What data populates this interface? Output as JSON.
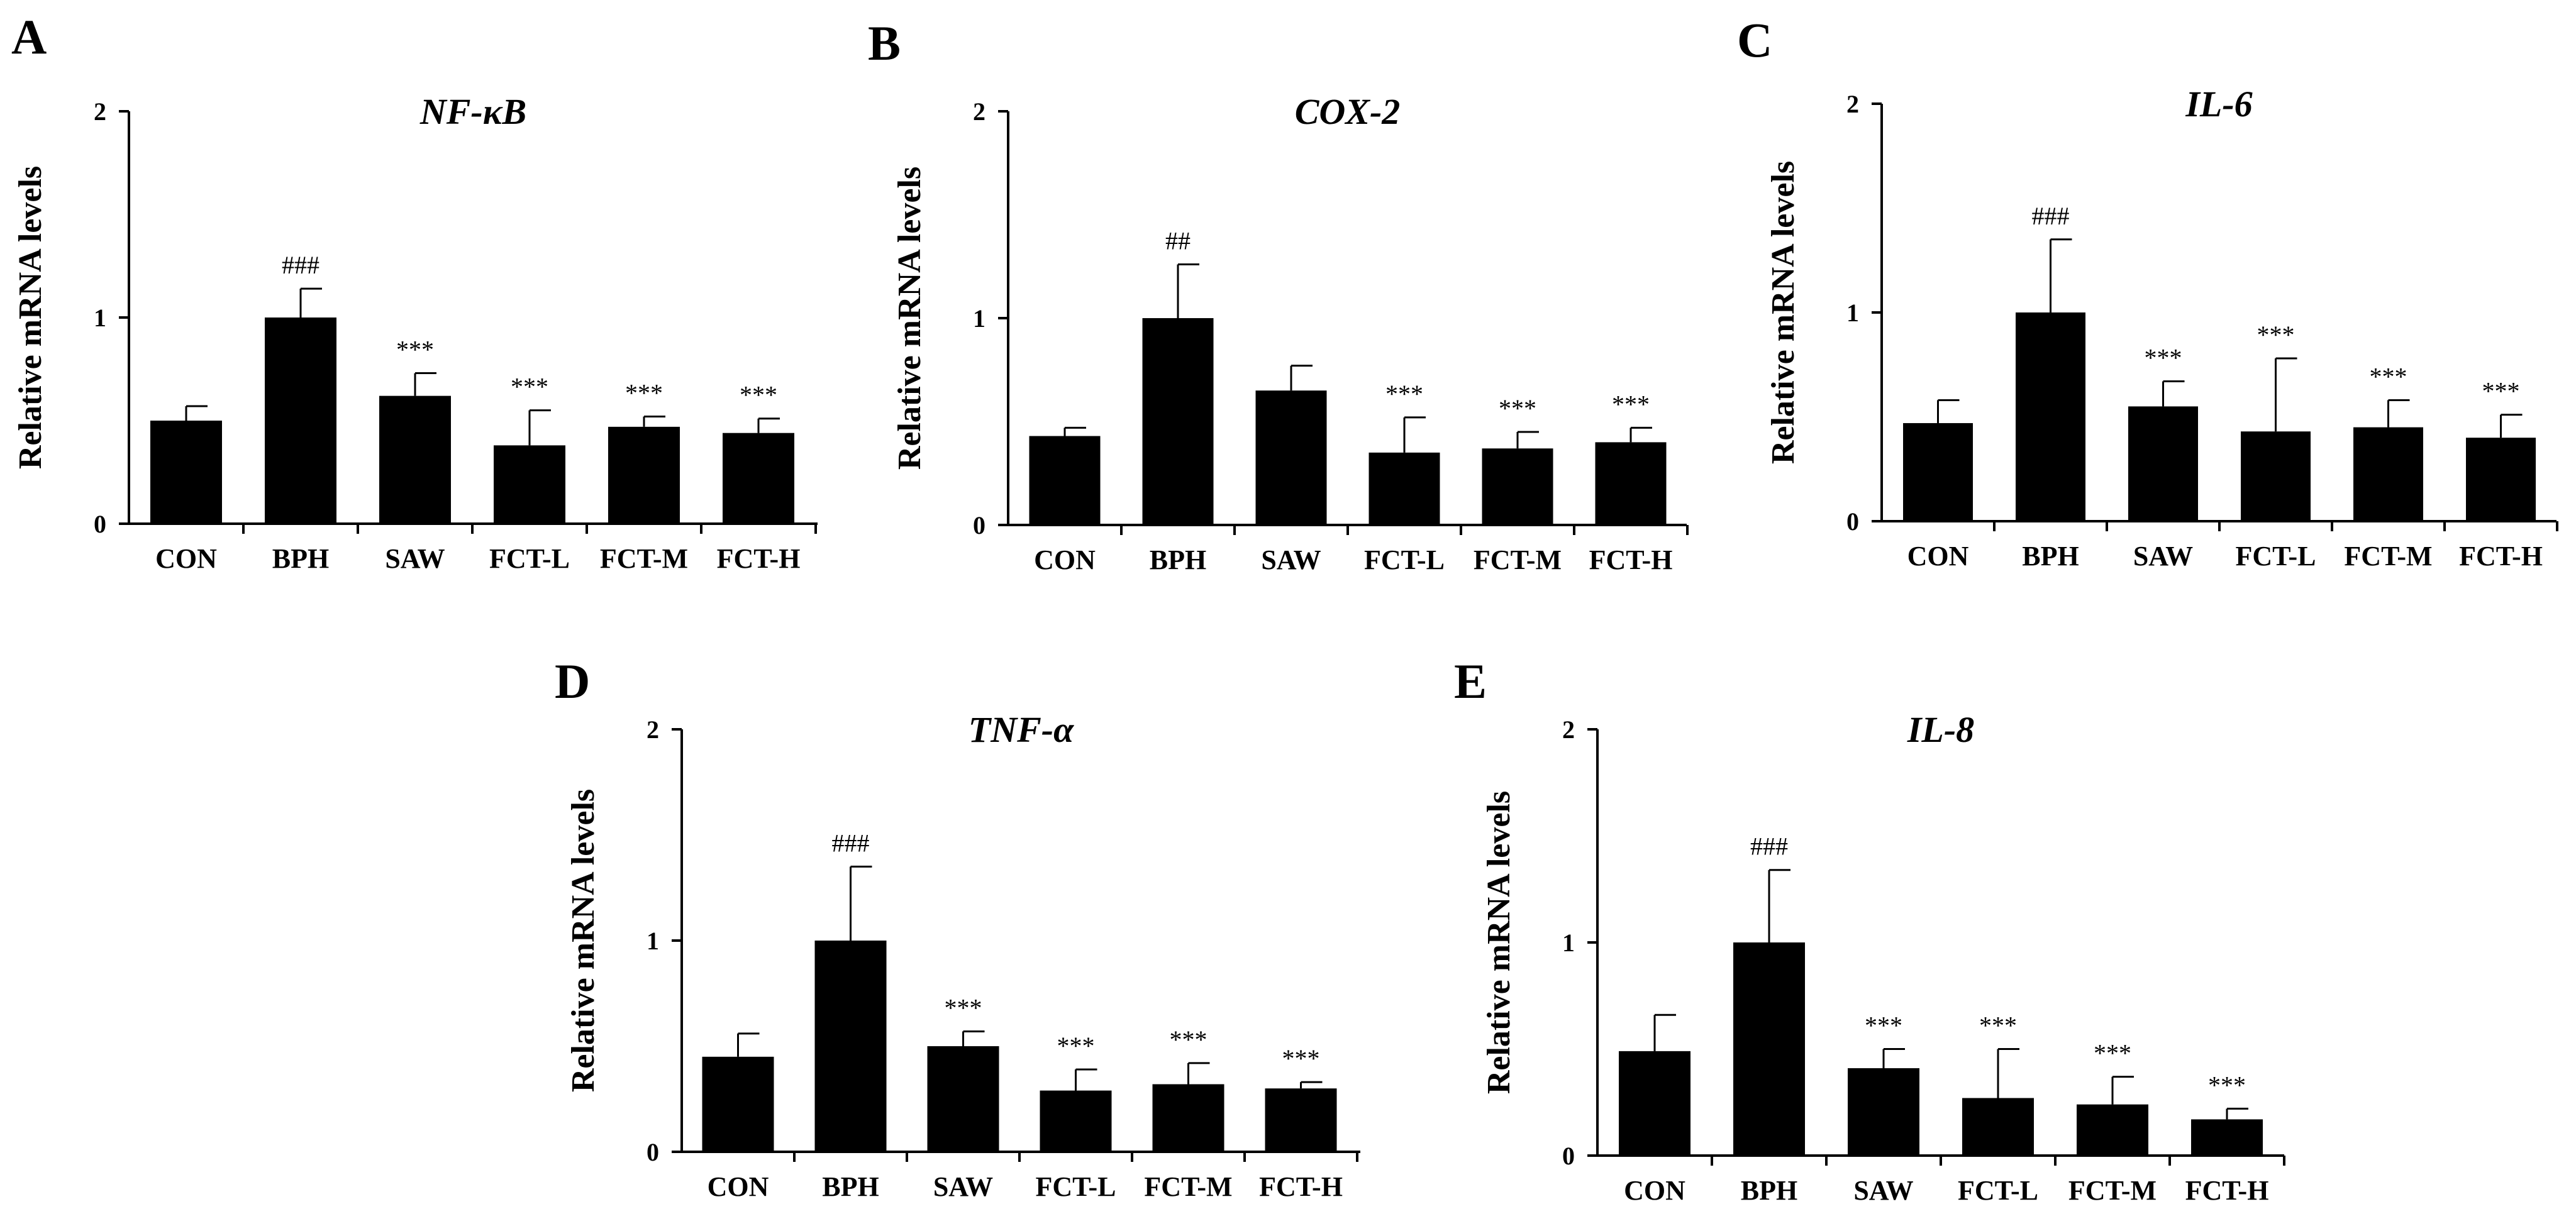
{
  "figure": {
    "charts": [
      {
        "letter": "A"
      },
      {
        "letter": "B"
      },
      {
        "letter": "C"
      },
      {
        "letter": "D"
      },
      {
        "letter": "E"
      }
    ]
  },
  "chart_data": [
    {
      "type": "bar",
      "panel": "A",
      "title": "NF-κB",
      "ylabel": "Relative mRNA levels",
      "xlabel": "",
      "ylim": [
        0,
        2
      ],
      "yticks": [
        0,
        1,
        2
      ],
      "categories": [
        "CON",
        "BPH",
        "SAW",
        "FCT-L",
        "FCT-M",
        "FCT-H"
      ],
      "values": [
        0.5,
        1.0,
        0.62,
        0.38,
        0.47,
        0.44
      ],
      "errors": [
        0.07,
        0.14,
        0.11,
        0.17,
        0.05,
        0.07
      ],
      "annotations": [
        "",
        "###",
        "***",
        "***",
        "***",
        "***"
      ]
    },
    {
      "type": "bar",
      "panel": "B",
      "title": "COX-2",
      "ylabel": "Relative mRNA levels",
      "xlabel": "",
      "ylim": [
        0,
        2
      ],
      "yticks": [
        0,
        1,
        2
      ],
      "categories": [
        "CON",
        "BPH",
        "SAW",
        "FCT-L",
        "FCT-M",
        "FCT-H"
      ],
      "values": [
        0.43,
        1.0,
        0.65,
        0.35,
        0.37,
        0.4
      ],
      "errors": [
        0.04,
        0.26,
        0.12,
        0.17,
        0.08,
        0.07
      ],
      "annotations": [
        "",
        "##",
        "",
        "***",
        "***",
        "***"
      ]
    },
    {
      "type": "bar",
      "panel": "C",
      "title": "IL-6",
      "ylabel": "Relative mRNA levels",
      "xlabel": "",
      "ylim": [
        0,
        2
      ],
      "yticks": [
        0,
        1,
        2
      ],
      "categories": [
        "CON",
        "BPH",
        "SAW",
        "FCT-L",
        "FCT-M",
        "FCT-H"
      ],
      "values": [
        0.47,
        1.0,
        0.55,
        0.43,
        0.45,
        0.4
      ],
      "errors": [
        0.11,
        0.35,
        0.12,
        0.35,
        0.13,
        0.11
      ],
      "annotations": [
        "",
        "###",
        "***",
        "***",
        "***",
        "***"
      ]
    },
    {
      "type": "bar",
      "panel": "D",
      "title": "TNF-α",
      "ylabel": "Relative mRNA levels",
      "xlabel": "",
      "ylim": [
        0,
        2
      ],
      "yticks": [
        0,
        1,
        2
      ],
      "categories": [
        "CON",
        "BPH",
        "SAW",
        "FCT-L",
        "FCT-M",
        "FCT-H"
      ],
      "values": [
        0.45,
        1.0,
        0.5,
        0.29,
        0.32,
        0.3
      ],
      "errors": [
        0.11,
        0.35,
        0.07,
        0.1,
        0.1,
        0.03
      ],
      "annotations": [
        "",
        "###",
        "***",
        "***",
        "***",
        "***"
      ]
    },
    {
      "type": "bar",
      "panel": "E",
      "title": "IL-8",
      "ylabel": "Relative mRNA levels",
      "xlabel": "",
      "ylim": [
        0,
        2
      ],
      "yticks": [
        0,
        1,
        2
      ],
      "categories": [
        "CON",
        "BPH",
        "SAW",
        "FCT-L",
        "FCT-M",
        "FCT-H"
      ],
      "values": [
        0.49,
        1.0,
        0.41,
        0.27,
        0.24,
        0.17
      ],
      "errors": [
        0.17,
        0.34,
        0.09,
        0.23,
        0.13,
        0.05
      ],
      "annotations": [
        "",
        "###",
        "***",
        "***",
        "***",
        "***"
      ]
    }
  ]
}
